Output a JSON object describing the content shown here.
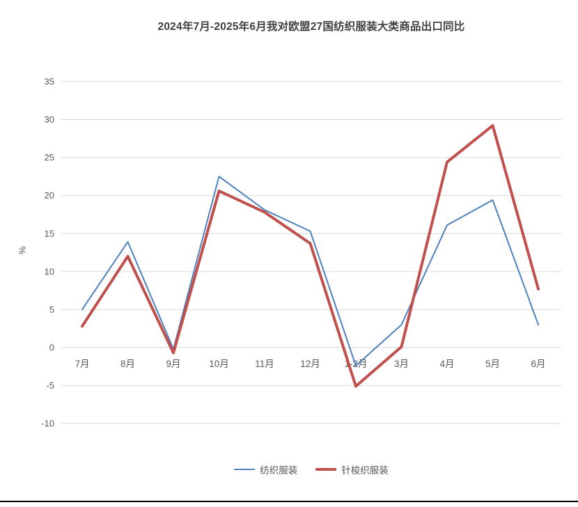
{
  "chart_data": {
    "type": "line",
    "title": "2024年7月-2025年6月我对欧盟27国纺织服装大类商品出口同比",
    "ylabel": "%",
    "xlabel": "",
    "categories": [
      "7月",
      "8月",
      "9月",
      "10月",
      "11月",
      "12月",
      "1-2月",
      "3月",
      "4月",
      "5月",
      "6月"
    ],
    "series": [
      {
        "name": "纺织服装",
        "color": "#4F81BD",
        "stroke_width": 2,
        "values": [
          5.0,
          13.9,
          -0.2,
          22.5,
          18.1,
          15.3,
          -2.4,
          3.0,
          16.1,
          19.4,
          3.0
        ]
      },
      {
        "name": "针梭织服装",
        "color": "#C0504D",
        "stroke_width": 4,
        "values": [
          2.8,
          12.0,
          -0.7,
          20.6,
          17.8,
          13.7,
          -5.1,
          0.1,
          24.4,
          29.2,
          7.7
        ]
      }
    ],
    "ylim": [
      -10,
      35
    ],
    "yticks": [
      35,
      30,
      25,
      20,
      15,
      10,
      5,
      0,
      -5,
      -10
    ],
    "grid": true,
    "legend_position": "bottom",
    "colors": {
      "gridline": "#d9d9d9",
      "tick_label": "#595959",
      "title": "#404040",
      "legend_label": "#595959",
      "bottom_rule": "#000000"
    }
  }
}
